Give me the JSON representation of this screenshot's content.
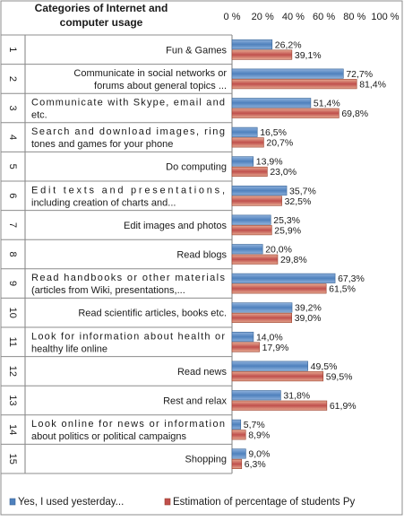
{
  "chart_data": {
    "type": "bar",
    "orientation": "horizontal",
    "title": "Categories of Internet and computer usage",
    "title_lines": [
      "Categories of Internet and",
      "computer usage"
    ],
    "xlim": [
      0,
      100
    ],
    "x_ticks": [
      "0 %",
      "20 %",
      "40 %",
      "60 %",
      "80 %",
      "100 %"
    ],
    "grid": false,
    "legend_position": "bottom",
    "colors": {
      "series1": "#4f81bd",
      "series2": "#c0504d"
    },
    "categories": [
      {
        "num": "1",
        "lines": [
          "Fun & Games"
        ],
        "align": "right"
      },
      {
        "num": "2",
        "lines": [
          "Communicate in social networks or",
          "forums about general topics ..."
        ],
        "align": "right"
      },
      {
        "num": "3",
        "lines": [
          "Communicate with Skype, email and",
          "etc."
        ],
        "align": "left"
      },
      {
        "num": "4",
        "lines": [
          "Search and download images, ring",
          "tones and games for your phone"
        ],
        "align": "left"
      },
      {
        "num": "5",
        "lines": [
          "Do computing"
        ],
        "align": "right"
      },
      {
        "num": "6",
        "lines": [
          "Edit texts and presentations,",
          "including creation of charts and..."
        ],
        "align": "left"
      },
      {
        "num": "7",
        "lines": [
          "Edit images and photos"
        ],
        "align": "right"
      },
      {
        "num": "8",
        "lines": [
          "Read blogs"
        ],
        "align": "right"
      },
      {
        "num": "9",
        "lines": [
          "Read handbooks or other materials",
          "(articles from Wiki, presentations,..."
        ],
        "align": "left"
      },
      {
        "num": "10",
        "lines": [
          "Read scientific articles, books etc."
        ],
        "align": "right"
      },
      {
        "num": "11",
        "lines": [
          "Look for information about health or",
          "healthy life online"
        ],
        "align": "left"
      },
      {
        "num": "12",
        "lines": [
          "Read news"
        ],
        "align": "right"
      },
      {
        "num": "13",
        "lines": [
          "Rest and relax"
        ],
        "align": "right"
      },
      {
        "num": "14",
        "lines": [
          "Look online for news or information",
          "about politics or political campaigns"
        ],
        "align": "left"
      },
      {
        "num": "15",
        "lines": [
          "Shopping"
        ],
        "align": "right"
      }
    ],
    "series": [
      {
        "name": "Yes, I used yesterday...",
        "values": [
          26.2,
          72.7,
          51.4,
          16.5,
          13.9,
          35.7,
          25.3,
          20.0,
          67.3,
          39.2,
          14.0,
          49.5,
          31.8,
          5.7,
          9.0
        ],
        "labels": [
          "26,2%",
          "72,7%",
          "51,4%",
          "16,5%",
          "13,9%",
          "35,7%",
          "25,3%",
          "20,0%",
          "67,3%",
          "39,2%",
          "14,0%",
          "49,5%",
          "31,8%",
          "5,7%",
          "9,0%"
        ]
      },
      {
        "name": "Estimation of percentage of students Py",
        "values": [
          39.1,
          81.4,
          69.8,
          20.7,
          23.0,
          32.5,
          25.9,
          29.8,
          61.5,
          39.0,
          17.9,
          59.5,
          61.9,
          8.9,
          6.3
        ],
        "labels": [
          "39,1%",
          "81,4%",
          "69,8%",
          "20,7%",
          "23,0%",
          "32,5%",
          "25,9%",
          "29,8%",
          "61,5%",
          "39,0%",
          "17,9%",
          "59,5%",
          "61,9%",
          "8,9%",
          "6,3%"
        ]
      }
    ]
  }
}
